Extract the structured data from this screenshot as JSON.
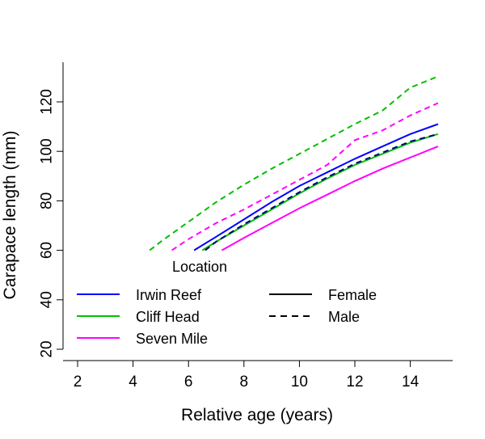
{
  "chart_data": {
    "type": "line",
    "title": "",
    "xlabel": "Relative age (years)",
    "ylabel": "Carapace length (mm)",
    "xlim": [
      1.5,
      15.5
    ],
    "ylim": [
      15,
      135
    ],
    "xticks": [
      2,
      4,
      6,
      8,
      10,
      12,
      14
    ],
    "yticks": [
      20,
      40,
      60,
      80,
      100,
      120
    ],
    "plot_clip_ymin": 60,
    "grid": false,
    "legend": {
      "title": "Location",
      "placement": "bottom-left",
      "location_entries": [
        {
          "label": "Irwin Reef",
          "color": "#0000ff"
        },
        {
          "label": "Cliff Head",
          "color": "#00c000"
        },
        {
          "label": "Seven Mile",
          "color": "#ff00ff"
        }
      ],
      "sex_entries": [
        {
          "label": "Female",
          "dash": "solid"
        },
        {
          "label": "Male",
          "dash": "dashed"
        }
      ]
    },
    "x": [
      4.6,
      5,
      6,
      6.2,
      6.5,
      6.6,
      7,
      7.2,
      8,
      9,
      10,
      11,
      12,
      13,
      14,
      15
    ],
    "series": [
      {
        "name": "Cliff Head Male",
        "color": "#00c000",
        "dash": "dashed",
        "points": [
          [
            4.6,
            60
          ],
          [
            5,
            63.5
          ],
          [
            6,
            71.5
          ],
          [
            7,
            79.5
          ],
          [
            8,
            86.5
          ],
          [
            9,
            93
          ],
          [
            10,
            99
          ],
          [
            11,
            105
          ],
          [
            12,
            111
          ],
          [
            13,
            116.5
          ],
          [
            14,
            125.8
          ],
          [
            15,
            130.3
          ]
        ]
      },
      {
        "name": "Seven Mile Male",
        "color": "#ff00ff",
        "dash": "dashed",
        "points": [
          [
            5.4,
            60
          ],
          [
            6,
            64.5
          ],
          [
            7,
            71
          ],
          [
            8,
            76.5
          ],
          [
            9,
            82.5
          ],
          [
            10,
            88.5
          ],
          [
            11,
            94.5
          ],
          [
            12,
            104.5
          ],
          [
            13,
            108.5
          ],
          [
            14,
            114.5
          ],
          [
            15,
            119.5
          ]
        ]
      },
      {
        "name": "Irwin Reef Female",
        "color": "#0000ff",
        "dash": "solid",
        "points": [
          [
            6.2,
            60
          ],
          [
            7,
            65.5
          ],
          [
            8,
            72.5
          ],
          [
            9,
            79.5
          ],
          [
            10,
            86
          ],
          [
            11,
            91.5
          ],
          [
            12,
            97
          ],
          [
            13,
            102
          ],
          [
            14,
            107
          ],
          [
            15,
            111
          ]
        ]
      },
      {
        "name": "Cliff Head Female",
        "color": "#00c000",
        "dash": "solid",
        "points": [
          [
            6.5,
            60
          ],
          [
            7,
            63.5
          ],
          [
            8,
            70
          ],
          [
            9,
            76.5
          ],
          [
            10,
            83
          ],
          [
            11,
            89
          ],
          [
            12,
            94.5
          ],
          [
            13,
            99
          ],
          [
            14,
            103.5
          ],
          [
            15,
            107
          ]
        ]
      },
      {
        "name": "Irwin Reef Male",
        "color": "#000080",
        "dash": "dashed",
        "points": [
          [
            6.6,
            60
          ],
          [
            7,
            63.5
          ],
          [
            8,
            70.5
          ],
          [
            9,
            77
          ],
          [
            10,
            83.5
          ],
          [
            11,
            89.5
          ],
          [
            12,
            95
          ],
          [
            13,
            99.5
          ],
          [
            14,
            104
          ],
          [
            15,
            107
          ]
        ]
      },
      {
        "name": "Seven Mile Female",
        "color": "#ff00ff",
        "dash": "solid",
        "points": [
          [
            7.2,
            60
          ],
          [
            8,
            65
          ],
          [
            9,
            71
          ],
          [
            10,
            77
          ],
          [
            11,
            82.5
          ],
          [
            12,
            88
          ],
          [
            13,
            93
          ],
          [
            14,
            97.5
          ],
          [
            15,
            102
          ]
        ]
      }
    ]
  }
}
